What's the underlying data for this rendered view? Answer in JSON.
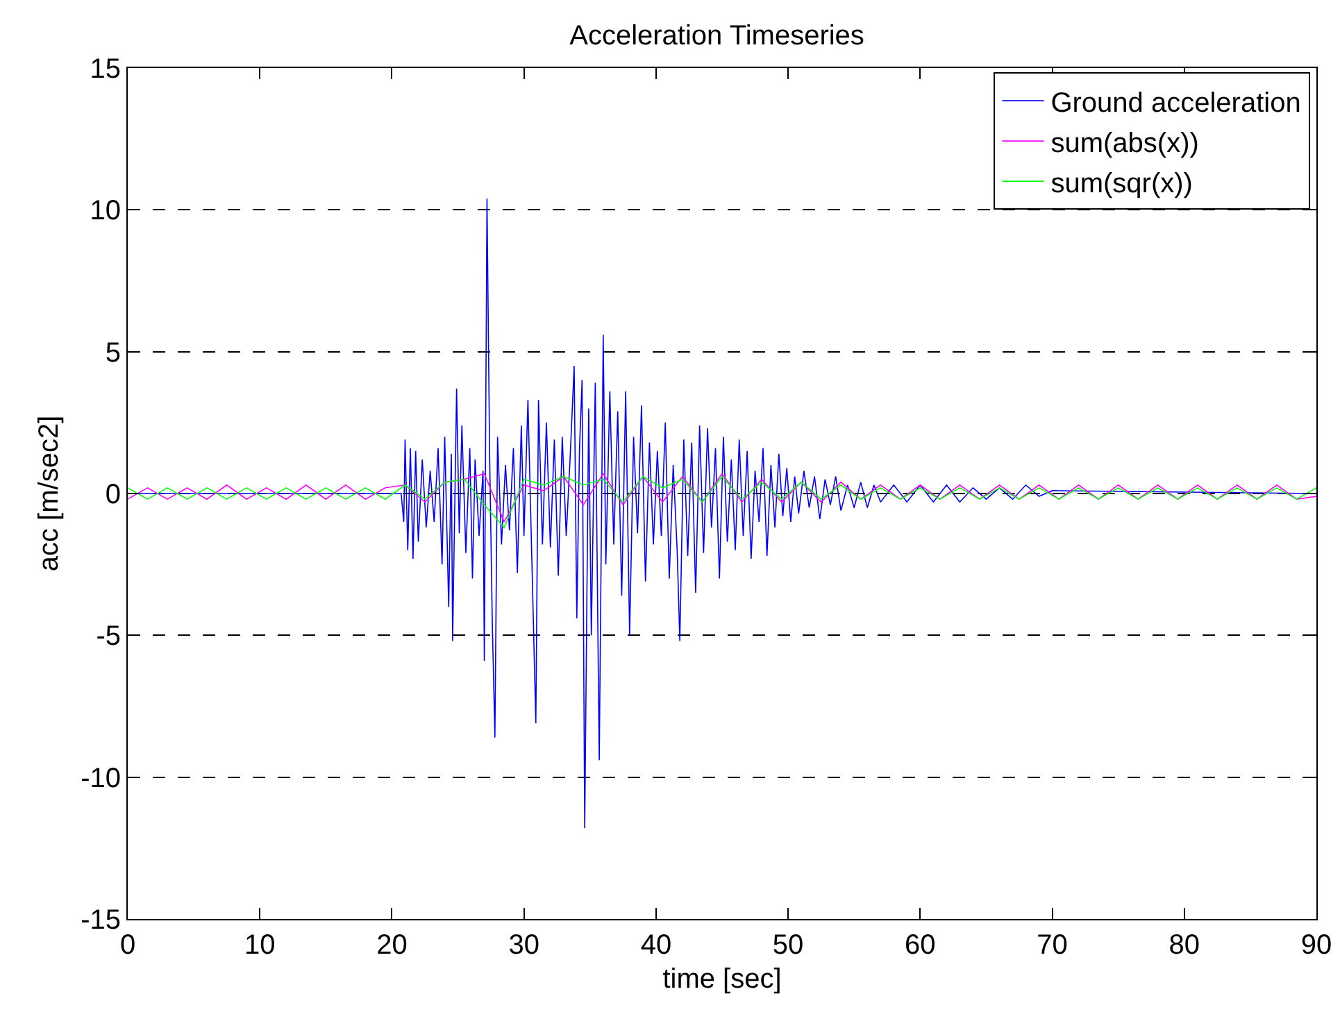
{
  "chart_data": {
    "type": "line",
    "title": "Acceleration Timeseries",
    "xlabel": "time [sec]",
    "ylabel": "acc [m/sec2]",
    "xlim": [
      0,
      90
    ],
    "xticks": [
      0,
      10,
      20,
      30,
      40,
      50,
      60,
      70,
      80,
      90
    ],
    "ylim": [
      -15,
      15
    ],
    "yticks": [
      -15,
      -10,
      -5,
      0,
      5,
      10,
      15
    ],
    "grid": "y",
    "legend": "top right",
    "line_style": "solid",
    "marker": "none",
    "series": [
      {
        "name": "Ground acceleration",
        "color": "#0000ff",
        "x": [
          0,
          20.7,
          20.9,
          21.0,
          21.2,
          21.4,
          21.6,
          21.8,
          22.0,
          22.3,
          22.6,
          22.9,
          23.2,
          23.5,
          23.8,
          24.0,
          24.3,
          24.5,
          24.6,
          24.9,
          25.1,
          25.3,
          25.6,
          25.9,
          26.1,
          26.3,
          26.6,
          26.9,
          27.0,
          27.2,
          27.4,
          27.6,
          27.8,
          28.0,
          28.3,
          28.6,
          28.9,
          29.2,
          29.5,
          29.8,
          30.0,
          30.3,
          30.6,
          30.9,
          31.1,
          31.4,
          31.7,
          32.0,
          32.3,
          32.6,
          32.9,
          33.2,
          33.5,
          33.8,
          34.0,
          34.2,
          34.4,
          34.6,
          34.9,
          35.1,
          35.4,
          35.7,
          36.0,
          36.2,
          36.5,
          36.8,
          37.1,
          37.4,
          37.7,
          38.0,
          38.3,
          38.6,
          38.9,
          39.2,
          39.5,
          39.8,
          40.1,
          40.4,
          40.7,
          41.0,
          41.3,
          41.6,
          41.8,
          42.1,
          42.4,
          42.7,
          43.0,
          43.3,
          43.6,
          43.9,
          44.2,
          44.5,
          44.8,
          45.1,
          45.4,
          45.7,
          46.0,
          46.3,
          46.6,
          46.9,
          47.2,
          47.5,
          47.8,
          48.1,
          48.4,
          48.7,
          49.0,
          49.3,
          49.6,
          49.9,
          50.2,
          50.5,
          50.8,
          51.2,
          51.6,
          52.0,
          52.4,
          52.8,
          53.2,
          53.6,
          54.0,
          54.5,
          55.0,
          55.5,
          56.0,
          56.5,
          57.0,
          58,
          59,
          60,
          61,
          62,
          63,
          64,
          65,
          66,
          67,
          68,
          69,
          70,
          90
        ],
        "values": [
          0,
          0,
          -1.0,
          1.9,
          -2.0,
          1.6,
          -2.3,
          1.5,
          -1.7,
          1.2,
          -1.2,
          0.8,
          -1.0,
          1.6,
          -2.5,
          2.0,
          -4.0,
          1.4,
          -5.2,
          3.7,
          -1.4,
          2.4,
          -2.1,
          1.6,
          -3.0,
          1.2,
          -1.5,
          0.8,
          -5.9,
          10.4,
          1.4,
          -4.5,
          -8.6,
          2.0,
          -1.8,
          1.0,
          -1.3,
          1.6,
          -2.8,
          2.4,
          -1.5,
          3.3,
          -2.4,
          -8.1,
          3.3,
          -1.8,
          2.5,
          -1.9,
          1.9,
          -2.9,
          2.0,
          -1.5,
          1.3,
          4.5,
          -4.4,
          1.5,
          4.0,
          -11.8,
          3.0,
          -5.0,
          3.9,
          -9.4,
          5.6,
          -2.5,
          3.6,
          -1.8,
          2.9,
          -3.6,
          3.6,
          -5.0,
          2.0,
          -1.4,
          3.1,
          -3.1,
          1.8,
          -1.8,
          1.5,
          -1.5,
          2.5,
          -3.0,
          1.0,
          -2.0,
          -5.2,
          1.9,
          -2.2,
          1.8,
          -3.5,
          2.4,
          -2.1,
          2.3,
          -1.2,
          1.6,
          -3.0,
          2.0,
          -1.7,
          1.2,
          -2.0,
          1.9,
          -1.5,
          1.5,
          -2.3,
          0.8,
          -1.0,
          1.6,
          -2.2,
          1.0,
          -1.2,
          1.4,
          -0.8,
          0.9,
          -1.0,
          0.6,
          -0.7,
          0.8,
          -0.5,
          0.6,
          -0.9,
          0.5,
          -0.4,
          0.6,
          -0.6,
          0.3,
          -0.5,
          0.4,
          -0.5,
          0.3,
          -0.3,
          0.3,
          -0.3,
          0.3,
          -0.3,
          0.3,
          -0.3,
          0.2,
          -0.2,
          0.2,
          -0.2,
          0.3,
          -0.1,
          0.1,
          0
        ]
      },
      {
        "name": "sum(abs(x))",
        "color": "#ff00ff",
        "x": [
          0,
          1.5,
          3,
          4.5,
          6,
          7.5,
          9,
          10.5,
          12,
          13.5,
          15,
          16.5,
          18,
          19.5,
          21,
          22.5,
          24,
          25.5,
          27,
          28.5,
          30,
          31.5,
          33,
          34.5,
          36,
          37.5,
          39,
          40.5,
          42,
          43.5,
          45,
          46.5,
          48,
          49.5,
          51,
          52.5,
          54,
          55.5,
          57,
          58.5,
          60,
          61.5,
          63,
          64.5,
          66,
          67.5,
          69,
          70.5,
          72,
          73.5,
          75,
          76.5,
          78,
          79.5,
          81,
          82.5,
          84,
          85.5,
          87,
          88.5,
          90
        ],
        "values": [
          -0.2,
          0.2,
          -0.2,
          0.2,
          -0.2,
          0.3,
          -0.2,
          0.2,
          -0.2,
          0.3,
          -0.2,
          0.3,
          -0.2,
          0.2,
          0.3,
          -0.3,
          0.4,
          0.5,
          0.7,
          -1.0,
          0.3,
          0.1,
          0.6,
          -0.4,
          0.7,
          -0.4,
          0.6,
          -0.3,
          0.6,
          -0.3,
          0.7,
          -0.3,
          0.5,
          -0.3,
          0.4,
          -0.3,
          0.4,
          -0.2,
          0.3,
          -0.2,
          0.3,
          -0.2,
          0.3,
          -0.2,
          0.3,
          -0.2,
          0.3,
          -0.2,
          0.3,
          -0.2,
          0.3,
          -0.2,
          0.3,
          -0.2,
          0.3,
          -0.2,
          0.3,
          -0.2,
          0.3,
          -0.2,
          -0.1
        ]
      },
      {
        "name": "sum(sqr(x))",
        "color": "#00ff00",
        "x": [
          0,
          1.5,
          3,
          4.5,
          6,
          7.5,
          9,
          10.5,
          12,
          13.5,
          15,
          16.5,
          18,
          19.5,
          21,
          22.5,
          24,
          25.5,
          27,
          28.5,
          30,
          31.5,
          33,
          34.5,
          36,
          37.5,
          39,
          40.5,
          42,
          43.5,
          45,
          46.5,
          48,
          49.5,
          51,
          52.5,
          54,
          55.5,
          57,
          58.5,
          60,
          61.5,
          63,
          64.5,
          66,
          67.5,
          69,
          70.5,
          72,
          73.5,
          75,
          76.5,
          78,
          79.5,
          81,
          82.5,
          84,
          85.5,
          87,
          88.5,
          90
        ],
        "values": [
          0.2,
          -0.2,
          0.2,
          -0.2,
          0.2,
          -0.2,
          0.2,
          -0.2,
          0.2,
          -0.2,
          0.2,
          -0.2,
          0.2,
          -0.2,
          0.3,
          -0.2,
          0.4,
          0.5,
          -0.4,
          -1.2,
          0.5,
          0.3,
          0.6,
          0.3,
          0.5,
          -0.3,
          0.6,
          0.2,
          0.5,
          -0.3,
          0.6,
          -0.2,
          0.4,
          -0.2,
          0.4,
          -0.2,
          0.3,
          -0.2,
          0.2,
          -0.2,
          0.2,
          -0.2,
          0.2,
          -0.2,
          0.2,
          -0.2,
          0.2,
          -0.2,
          0.2,
          -0.2,
          0.2,
          -0.2,
          0.2,
          -0.2,
          0.2,
          -0.2,
          0.2,
          -0.2,
          0.2,
          -0.2,
          0.2
        ]
      }
    ]
  }
}
